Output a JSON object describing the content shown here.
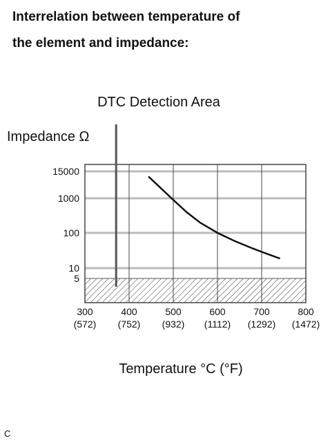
{
  "heading": {
    "line1": "Interrelation between temperature of",
    "line2": "the element and impedance:"
  },
  "corner_mark": "C",
  "chart_data": {
    "type": "line",
    "title": "DTC Detection Area",
    "ylabel": "Impedance Ω",
    "xlabel": "Temperature °C (°F)",
    "y_scale": "log",
    "grid": true,
    "y_ticks": [
      {
        "value": 15000,
        "label": "15000"
      },
      {
        "value": 1000,
        "label": "1000"
      },
      {
        "value": 100,
        "label": "100"
      },
      {
        "value": 10,
        "label": "10"
      },
      {
        "value": 5,
        "label": "5"
      }
    ],
    "x_ticks": [
      {
        "value": 300,
        "label": "300",
        "sub": "(572)"
      },
      {
        "value": 400,
        "label": "400",
        "sub": "(752)"
      },
      {
        "value": 500,
        "label": "500",
        "sub": "(932)"
      },
      {
        "value": 600,
        "label": "600",
        "sub": "(1112)"
      },
      {
        "value": 700,
        "label": "700",
        "sub": "(1292)"
      },
      {
        "value": 800,
        "label": "800",
        "sub": "(1472)"
      }
    ],
    "xlim": [
      300,
      800
    ],
    "detection_threshold_x": 380,
    "shaded_region_below_y": 5,
    "series": [
      {
        "x": [
          445,
          470,
          500,
          530,
          560,
          600,
          640,
          680,
          710,
          740
        ],
        "y": [
          8500,
          3000,
          900,
          400,
          200,
          100,
          58,
          36,
          26,
          19
        ]
      }
    ],
    "colors": {
      "line": "#111111",
      "grid": "#bbbbbb",
      "hatch": "#333333"
    }
  }
}
